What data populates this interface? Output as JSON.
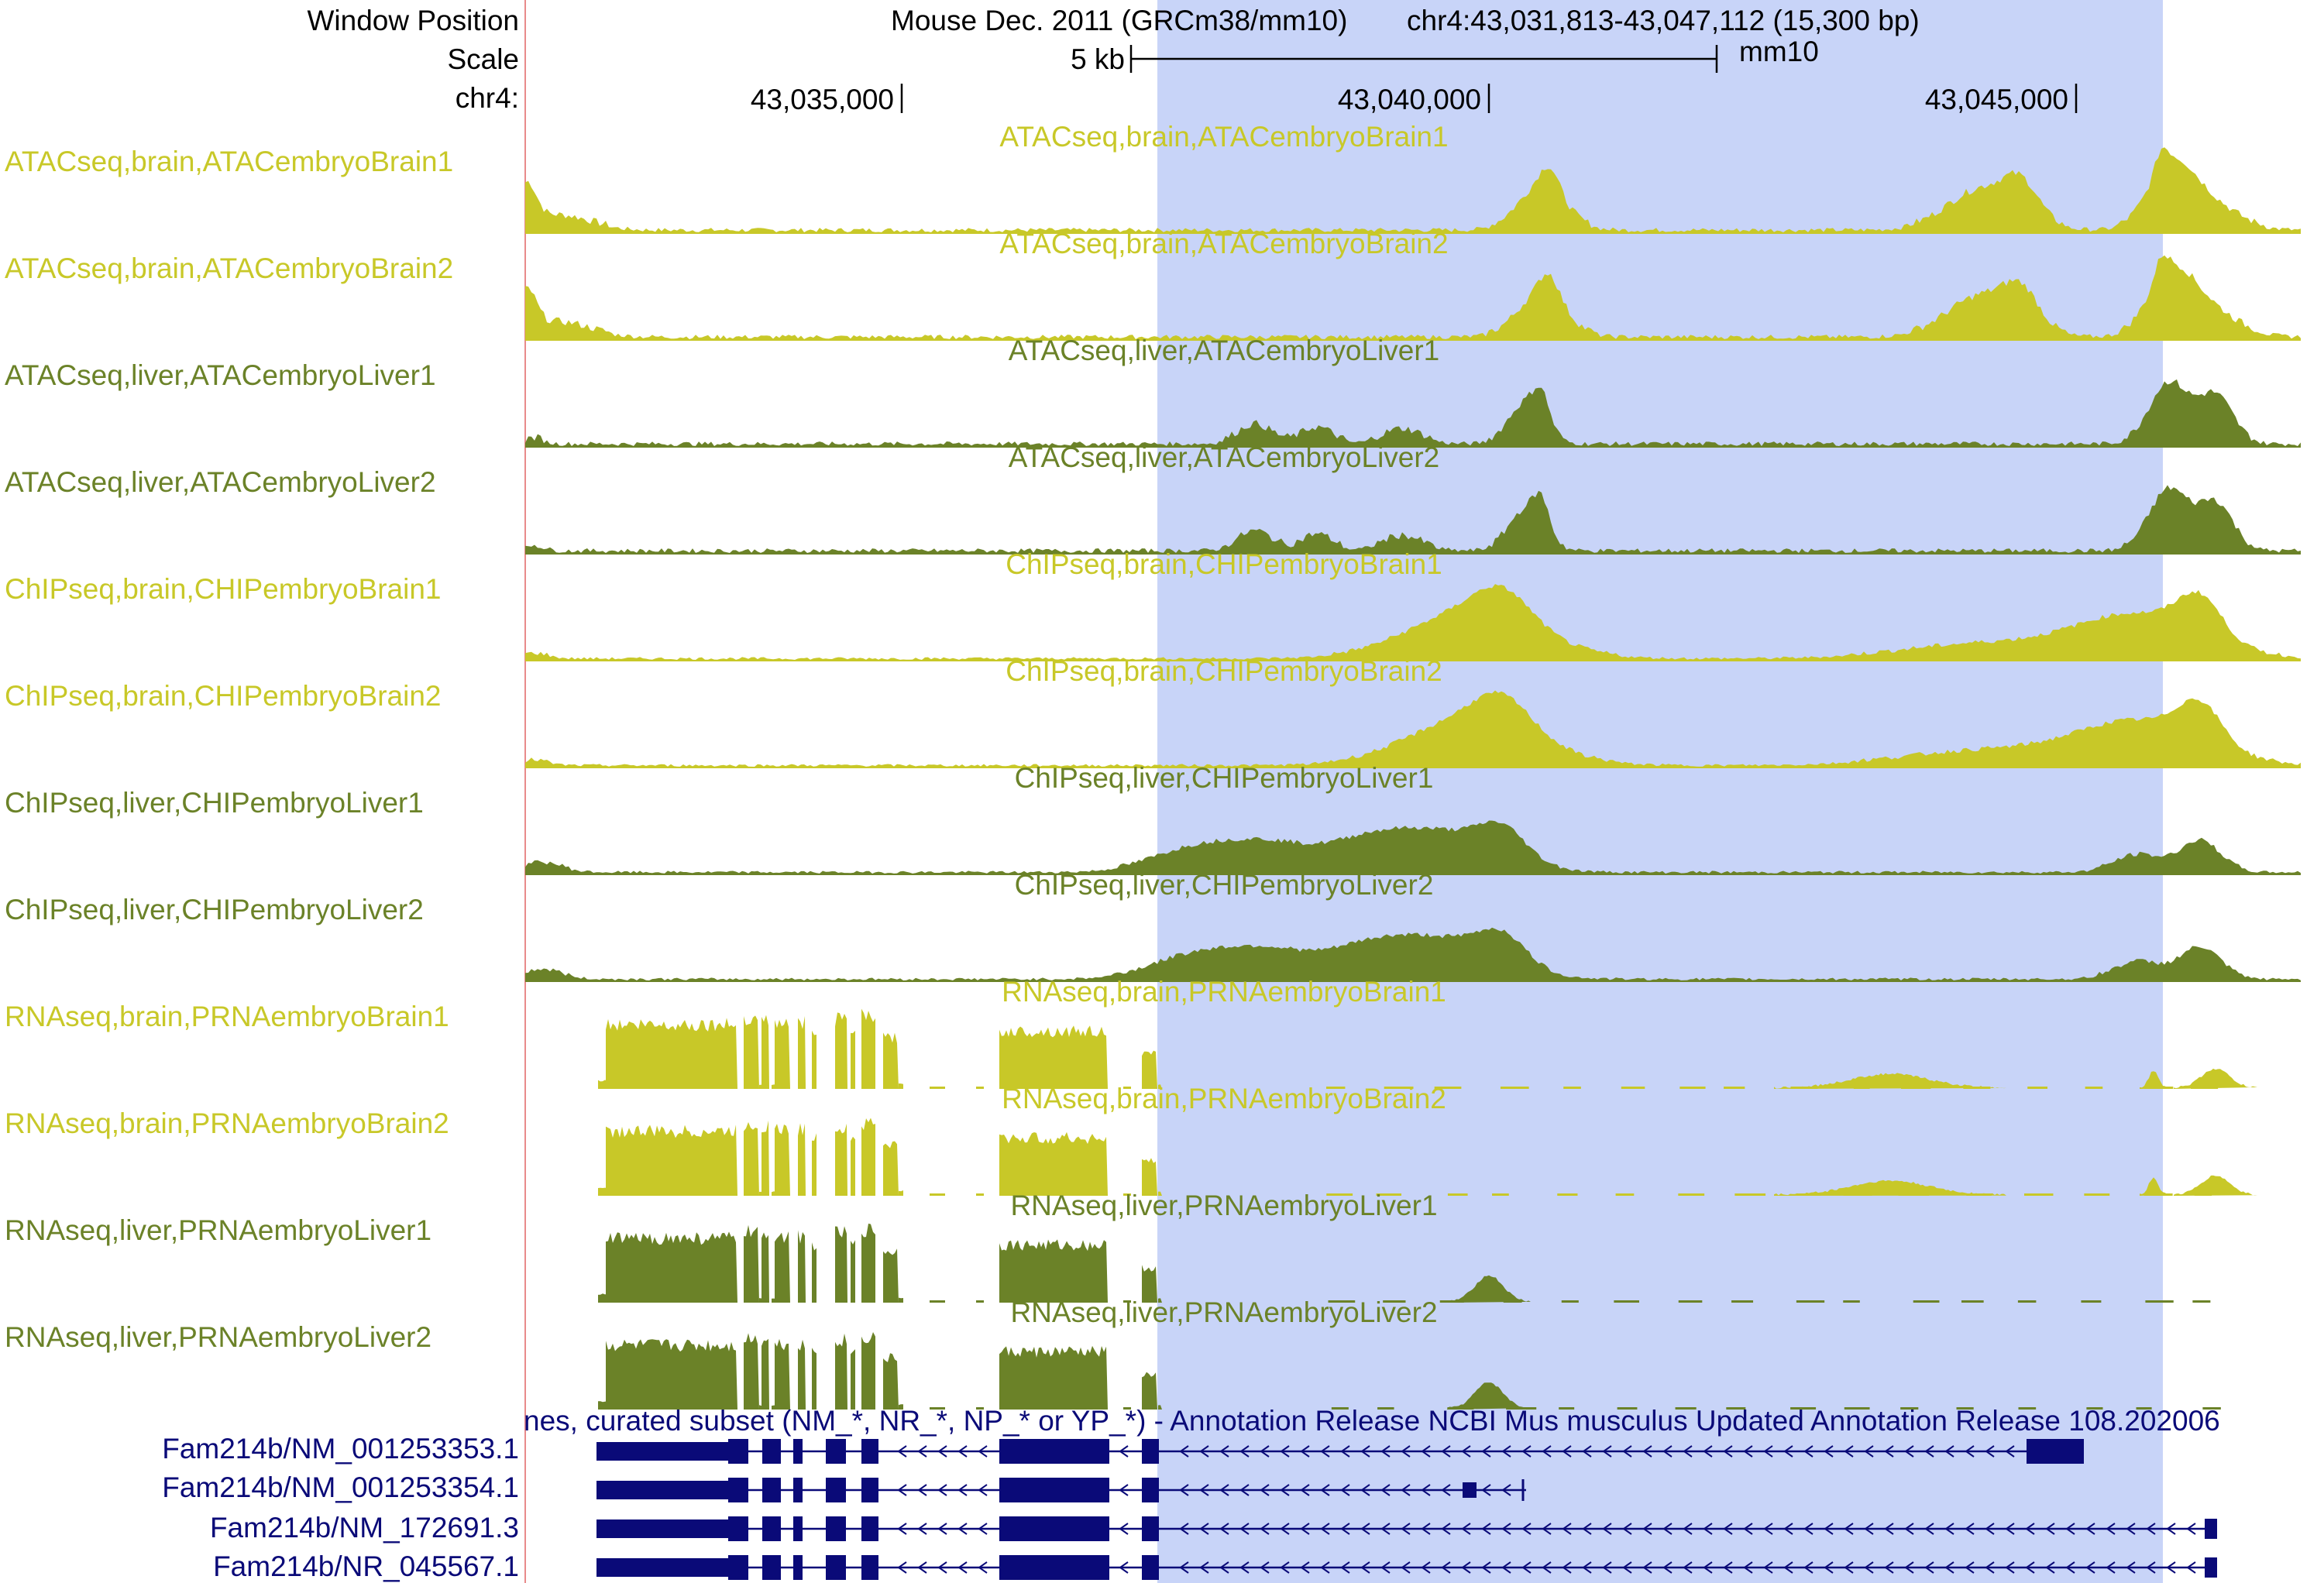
{
  "header": {
    "window_position_label": "Window Position",
    "scale_label": "Scale",
    "chrom_label": "chr4:",
    "assembly_text": "Mouse Dec. 2011 (GRCm38/mm10)",
    "position_text": "chr4:43,031,813-43,047,112 (15,300 bp)",
    "scale_value": "5 kb",
    "db_label": "mm10",
    "ticks": [
      "43,035,000",
      "43,040,000",
      "43,045,000"
    ]
  },
  "colors": {
    "brain": "#c8c828",
    "liver": "#6b8228",
    "highlight": "#c8d4f8",
    "gene": "#0a0a78",
    "left_border": "#e88a8a"
  },
  "tracks": [
    {
      "name": "ATACseq,brain,ATACembryoBrain1",
      "tissue": "brain"
    },
    {
      "name": "ATACseq,brain,ATACembryoBrain2",
      "tissue": "brain"
    },
    {
      "name": "ATACseq,liver,ATACembryoLiver1",
      "tissue": "liver"
    },
    {
      "name": "ATACseq,liver,ATACembryoLiver2",
      "tissue": "liver"
    },
    {
      "name": "ChIPseq,brain,CHIPembryoBrain1",
      "tissue": "brain"
    },
    {
      "name": "ChIPseq,brain,CHIPembryoBrain2",
      "tissue": "brain"
    },
    {
      "name": "ChIPseq,liver,CHIPembryoLiver1",
      "tissue": "liver"
    },
    {
      "name": "ChIPseq,liver,CHIPembryoLiver2",
      "tissue": "liver"
    },
    {
      "name": "RNAseq,brain,PRNAembryoBrain1",
      "tissue": "brain"
    },
    {
      "name": "RNAseq,brain,PRNAembryoBrain2",
      "tissue": "brain"
    },
    {
      "name": "RNAseq,liver,PRNAembryoLiver1",
      "tissue": "liver"
    },
    {
      "name": "RNAseq,liver,PRNAembryoLiver2",
      "tissue": "liver"
    }
  ],
  "genes": {
    "description": "nes, curated subset (NM_*, NR_*, NP_* or YP_*) - Annotation Release NCBI Mus musculus Updated Annotation Release 108.202006",
    "transcripts": [
      {
        "name": "Fam214b/NM_001253353.1"
      },
      {
        "name": "Fam214b/NM_001253354.1"
      },
      {
        "name": "Fam214b/NM_172691.3"
      },
      {
        "name": "Fam214b/NR_045567.1"
      }
    ]
  }
}
